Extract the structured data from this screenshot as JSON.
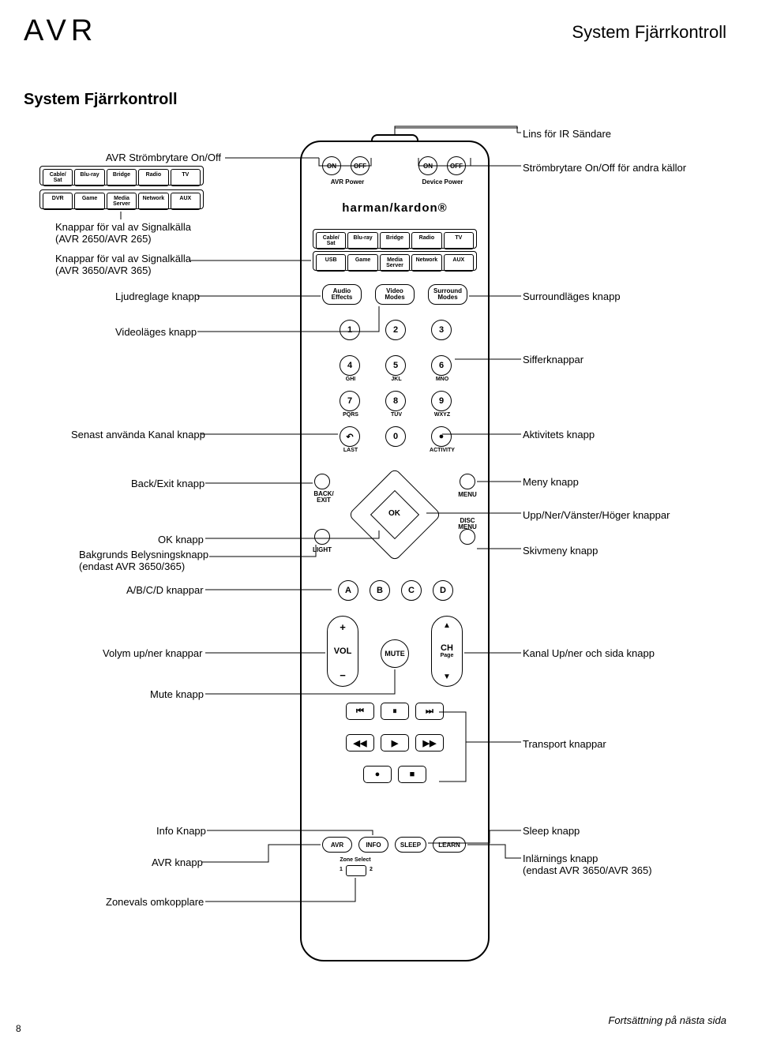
{
  "brand_logo": "AVR",
  "page_header": "System Fjärrkontroll",
  "section_title": "System Fjärrkontroll",
  "page_number": "8",
  "footer": "Fortsättning på nästa sida",
  "colors": {
    "line": "#000000",
    "bg": "#ffffff"
  },
  "callouts": {
    "ir_lens": "Lins för IR Sändare",
    "avr_power": "AVR Strömbrytare On/Off",
    "device_power": "Strömbrytare On/Off för andra källor",
    "src_265": "Knappar för val av Signalkälla",
    "src_265_sub": "(AVR 2650/AVR 265)",
    "src_365": "Knappar för val av Signalkälla",
    "src_365_sub": "(AVR 3650/AVR 365)",
    "audio_effects": "Ljudreglage knapp",
    "video_modes": "Videoläges knapp",
    "surround": "Surroundläges knapp",
    "numbers": "Sifferknappar",
    "last": "Senast använda Kanal knapp",
    "activity": "Aktivitets knapp",
    "back_exit": "Back/Exit knapp",
    "menu": "Meny knapp",
    "arrows": "Upp/Ner/Vänster/Höger knappar",
    "ok": "OK knapp",
    "light": "Bakgrunds Belysningsknapp",
    "light_sub": "(endast AVR 3650/365)",
    "abcd": "A/B/C/D knappar",
    "disc_menu": "Skivmeny knapp",
    "vol": "Volym up/ner knappar",
    "mute": "Mute knapp",
    "ch": "Kanal Up/ner och sida knapp",
    "transport": "Transport knappar",
    "info": "Info Knapp",
    "avr": "AVR knapp",
    "zone": "Zonevals omkopplare",
    "sleep": "Sleep knapp",
    "learn": "Inlärnings knapp",
    "learn_sub": "(endast AVR 3650/AVR 365)"
  },
  "remote": {
    "brand": "harman/kardon®",
    "power_rows": {
      "on1": "ON",
      "off1": "OFF",
      "on2": "ON",
      "off2": "OFF",
      "avr_power_lbl": "AVR Power",
      "dev_power_lbl": "Device Power"
    },
    "src_row1": [
      "Cable/\nSat",
      "Blu-ray",
      "Bridge",
      "Radio",
      "TV"
    ],
    "src_row2": [
      "USB",
      "Game",
      "Media\nServer",
      "Network",
      "AUX"
    ],
    "src_265_row1": [
      "Cable/\nSat",
      "Blu-ray",
      "Bridge",
      "Radio",
      "TV"
    ],
    "src_265_row2": [
      "DVR",
      "Game",
      "Media\nServer",
      "Network",
      "AUX"
    ],
    "mode_btns": {
      "audio": "Audio\nEffects",
      "video": "Video\nModes",
      "surround": "Surround\nModes"
    },
    "numpad": [
      {
        "n": "1",
        "s": ""
      },
      {
        "n": "2",
        "s": ""
      },
      {
        "n": "3",
        "s": ""
      },
      {
        "n": "4",
        "s": "GHI"
      },
      {
        "n": "5",
        "s": "JKL"
      },
      {
        "n": "6",
        "s": "MNO"
      },
      {
        "n": "7",
        "s": "PQRS"
      },
      {
        "n": "8",
        "s": "TUV"
      },
      {
        "n": "9",
        "s": "WXYZ"
      },
      {
        "n": "↶",
        "s": "LAST"
      },
      {
        "n": "0",
        "s": ""
      },
      {
        "n": "●",
        "s": "ACTIVITY"
      }
    ],
    "nav": {
      "back": "BACK/\nEXIT",
      "menu": "MENU",
      "light": "LIGHT",
      "disc": "DISC\nMENU",
      "ok": "OK"
    },
    "abcd": [
      "A",
      "B",
      "C",
      "D"
    ],
    "vol": {
      "label": "VOL",
      "plus": "+",
      "minus": "−"
    },
    "mute": "MUTE",
    "ch": {
      "label": "CH",
      "sub": "Page",
      "up": "▲",
      "down": "▼"
    },
    "transport_row1": [
      "⏮",
      "⏸",
      "⏭"
    ],
    "transport_row2": [
      "◀◀",
      "▶",
      "▶▶"
    ],
    "transport_row3": [
      "●",
      "■"
    ],
    "bottom": {
      "avr": "AVR",
      "info": "INFO",
      "sleep": "SLEEP",
      "learn": "LEARN",
      "zone": "Zone Select",
      "z1": "1",
      "z2": "2"
    }
  }
}
